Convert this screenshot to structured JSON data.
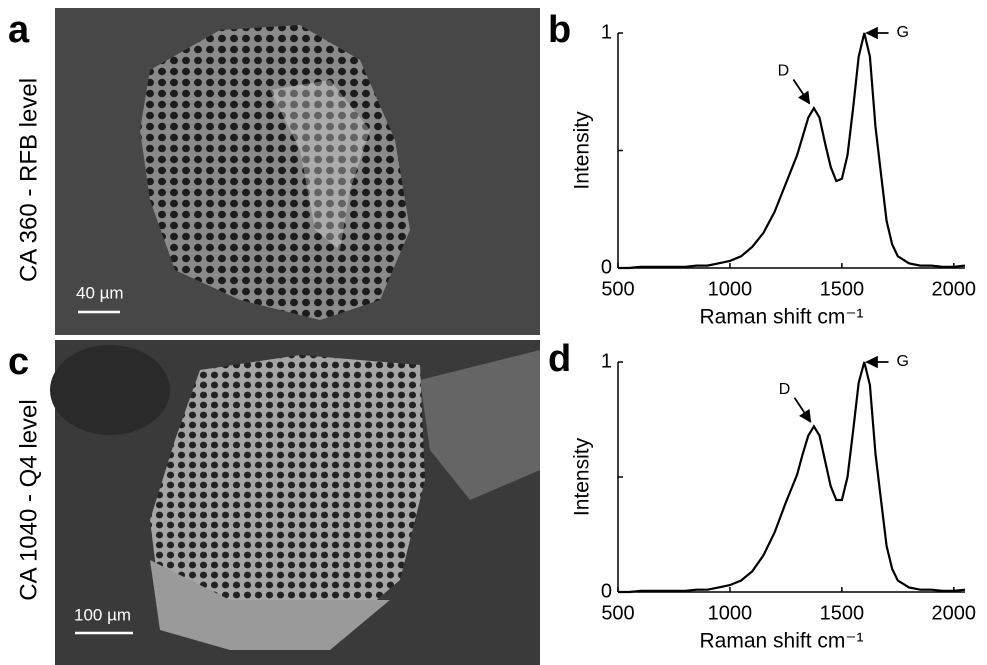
{
  "images": [
    {
      "panel_label": "a",
      "row_label": "CA 360 - RFB level",
      "scale_bar": "40 µm"
    },
    {
      "panel_label": "c",
      "row_label": "CA 1040 - Q4 level",
      "scale_bar": "100 µm"
    }
  ],
  "chart_data": [
    {
      "type": "line",
      "panel_label": "b",
      "xlabel": "Raman shift cm⁻¹",
      "ylabel": "Intensity",
      "color": "#000000",
      "x": [
        500,
        550,
        600,
        650,
        700,
        750,
        800,
        850,
        900,
        950,
        1000,
        1050,
        1100,
        1150,
        1200,
        1250,
        1275,
        1300,
        1325,
        1350,
        1375,
        1400,
        1425,
        1450,
        1475,
        1500,
        1525,
        1550,
        1575,
        1600,
        1625,
        1650,
        1675,
        1700,
        1725,
        1750,
        1800,
        1850,
        1900,
        1950,
        2000,
        2050
      ],
      "values": [
        0,
        0,
        0.005,
        0.005,
        0.005,
        0.005,
        0.005,
        0.01,
        0.01,
        0.02,
        0.03,
        0.05,
        0.09,
        0.15,
        0.24,
        0.36,
        0.42,
        0.48,
        0.56,
        0.64,
        0.68,
        0.64,
        0.53,
        0.43,
        0.37,
        0.38,
        0.48,
        0.68,
        0.9,
        1.0,
        0.9,
        0.6,
        0.4,
        0.2,
        0.1,
        0.05,
        0.02,
        0.01,
        0.01,
        0.005,
        0.005,
        0.01
      ],
      "xlim": [
        500,
        2050
      ],
      "ylim": [
        0,
        1
      ],
      "xticks": [
        500,
        1000,
        1500,
        2000
      ],
      "yticks": [
        0,
        1
      ],
      "yminor_ticks": [
        0.5
      ],
      "annotations": [
        {
          "text": "D",
          "x": 1355,
          "y": 0.7
        },
        {
          "text": "G",
          "x": 1610,
          "y": 1.0
        }
      ]
    },
    {
      "type": "line",
      "panel_label": "d",
      "xlabel": "Raman shift cm⁻¹",
      "ylabel": "Intensity",
      "color": "#000000",
      "x": [
        500,
        550,
        600,
        650,
        700,
        750,
        800,
        850,
        900,
        950,
        1000,
        1050,
        1100,
        1150,
        1200,
        1250,
        1275,
        1300,
        1325,
        1350,
        1375,
        1400,
        1425,
        1450,
        1475,
        1500,
        1525,
        1550,
        1575,
        1600,
        1625,
        1650,
        1675,
        1700,
        1725,
        1750,
        1800,
        1850,
        1900,
        1950,
        2000,
        2050
      ],
      "values": [
        0,
        0,
        0.005,
        0.005,
        0.005,
        0.005,
        0.005,
        0.01,
        0.01,
        0.02,
        0.03,
        0.05,
        0.09,
        0.16,
        0.26,
        0.39,
        0.45,
        0.51,
        0.6,
        0.68,
        0.72,
        0.68,
        0.57,
        0.46,
        0.4,
        0.4,
        0.5,
        0.7,
        0.91,
        1.0,
        0.9,
        0.6,
        0.4,
        0.2,
        0.1,
        0.05,
        0.02,
        0.01,
        0.01,
        0.005,
        0.005,
        0.01
      ],
      "xlim": [
        500,
        2050
      ],
      "ylim": [
        0,
        1
      ],
      "xticks": [
        500,
        1000,
        1500,
        2000
      ],
      "yticks": [
        0,
        1
      ],
      "yminor_ticks": [
        0.5
      ],
      "annotations": [
        {
          "text": "D",
          "x": 1360,
          "y": 0.74
        },
        {
          "text": "G",
          "x": 1610,
          "y": 1.0
        }
      ]
    }
  ]
}
